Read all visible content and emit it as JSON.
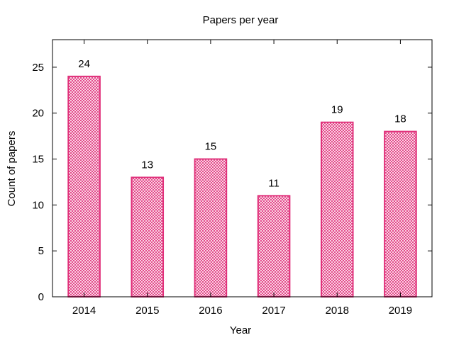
{
  "chart_data": {
    "type": "bar",
    "title": "Papers per year",
    "xlabel": "Year",
    "ylabel": "Count of papers",
    "categories": [
      "2014",
      "2015",
      "2016",
      "2017",
      "2018",
      "2019"
    ],
    "values": [
      24,
      13,
      15,
      11,
      19,
      18
    ],
    "ylim": [
      0,
      28
    ],
    "yticks": [
      0,
      5,
      10,
      15,
      20,
      25
    ],
    "grid": false,
    "legend": "none",
    "bar_color": "#e0307a",
    "bar_fill": "crosshatch"
  }
}
